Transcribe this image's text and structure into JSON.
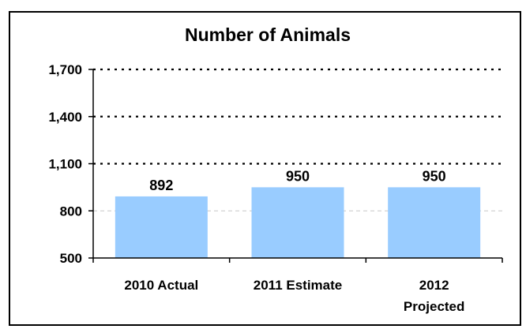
{
  "chart_data": {
    "type": "bar",
    "title": "Number of Animals",
    "xlabel": "",
    "ylabel": "",
    "categories": [
      "2010 Actual",
      "2011 Estimate",
      "2012 Projected"
    ],
    "category_lines": [
      [
        "2010 Actual"
      ],
      [
        "2011 Estimate"
      ],
      [
        "2012",
        "Projected"
      ]
    ],
    "values": [
      892,
      950,
      950
    ],
    "data_labels": [
      "892",
      "950",
      "950"
    ],
    "ylim": [
      500,
      1700
    ],
    "yticks": [
      500,
      800,
      1100,
      1400,
      1700
    ],
    "ytick_labels": [
      "500",
      "800",
      "1,100",
      "1,400",
      "1,700"
    ],
    "grid": true,
    "legend": "none",
    "colors": {
      "bar": "#99ccff",
      "grid": "#000000",
      "axis": "#000000"
    }
  }
}
